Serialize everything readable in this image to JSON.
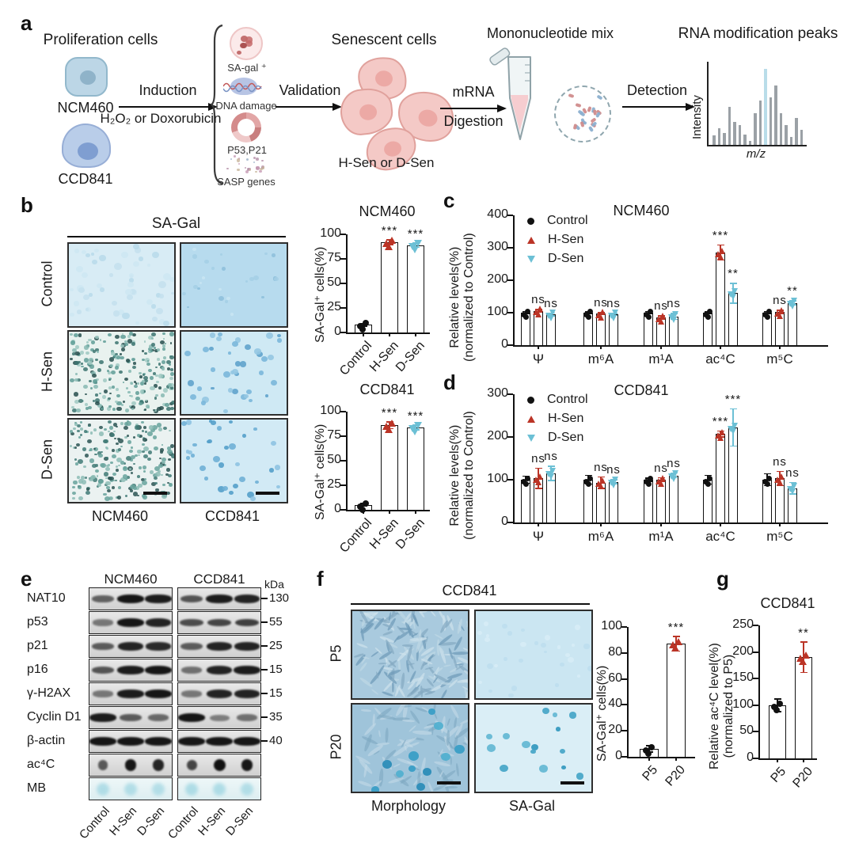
{
  "colors": {
    "control": "#111111",
    "h_sen_red": "#bb3426",
    "d_sen_cyan": "#6cc0d5",
    "spectrum_highlight": "#b9dde9",
    "stain_teal": "#4f9e97",
    "stain_blue": "#5fa3cc"
  },
  "panels": {
    "a": {
      "label": "a",
      "prolif_title": "Proliferation cells",
      "cell1": "NCM460",
      "cell2": "CCD841",
      "induction1": "Induction",
      "induction2": "H₂O₂ or Doxorubicin",
      "markers": [
        "SA-gal ⁺",
        "DNA damage",
        "P53,P21",
        "SASP genes"
      ],
      "validation": "Validation",
      "senescent_title": "Senescent cells",
      "senescent_sub": "H-Sen or D-Sen",
      "mrna1": "mRNA",
      "mrna2": "Digestion",
      "mono_title": "Mononucleotide mix",
      "detection": "Detection",
      "peaks_title": "RNA modification peaks",
      "intensity": "Intensity",
      "mz": "m/z"
    },
    "b": {
      "label": "b",
      "header": "SA-Gal",
      "rows": [
        "Control",
        "H-Sen",
        "D-Sen"
      ],
      "cols": [
        "NCM460",
        "CCD841"
      ]
    },
    "c": {
      "label": "c"
    },
    "d": {
      "label": "d"
    },
    "e": {
      "label": "e",
      "col_headers": [
        "NCM460",
        "CCD841"
      ],
      "kda_unit": "kDa",
      "lanes": [
        "Control",
        "H-Sen",
        "D-Sen",
        "Control",
        "H-Sen",
        "D-Sen"
      ],
      "rows": [
        {
          "name": "NAT10",
          "kda": "130",
          "type": "band",
          "ncm": [
            0.45,
            1,
            0.95
          ],
          "ccd": [
            0.55,
            0.95,
            0.9
          ]
        },
        {
          "name": "p53",
          "kda": "55",
          "type": "band",
          "ncm": [
            0.3,
            1,
            0.9
          ],
          "ccd": [
            0.6,
            0.65,
            0.7
          ]
        },
        {
          "name": "p21",
          "kda": "25",
          "type": "band",
          "ncm": [
            0.5,
            0.9,
            0.85
          ],
          "ccd": [
            0.5,
            0.9,
            0.9
          ]
        },
        {
          "name": "p16",
          "kda": "15",
          "type": "band",
          "ncm": [
            0.55,
            0.95,
            1
          ],
          "ccd": [
            0.35,
            0.9,
            0.95
          ]
        },
        {
          "name": "γ-H2AX",
          "kda": "15",
          "type": "band",
          "ncm": [
            0.3,
            0.95,
            1
          ],
          "ccd": [
            0.3,
            0.9,
            0.9
          ]
        },
        {
          "name": "Cyclin D1",
          "kda": "35",
          "type": "band",
          "ncm": [
            0.95,
            0.5,
            0.4
          ],
          "ccd": [
            1,
            0.25,
            0.35
          ]
        },
        {
          "name": "β-actin",
          "kda": "40",
          "type": "band",
          "ncm": [
            1,
            1,
            1
          ],
          "ccd": [
            1,
            1,
            1
          ]
        },
        {
          "name": "ac⁴C",
          "kda": "",
          "type": "dot",
          "ncm": [
            0.45,
            0.95,
            0.85
          ],
          "ccd": [
            0.6,
            1,
            0.95
          ]
        },
        {
          "name": "MB",
          "kda": "",
          "type": "mb",
          "ncm": [
            0.55,
            0.5,
            0.45
          ],
          "ccd": [
            0.6,
            0.6,
            0.5
          ]
        }
      ]
    },
    "f": {
      "label": "f",
      "header": "CCD841",
      "rows": [
        "P5",
        "P20"
      ],
      "cols": [
        "Morphology",
        "SA-Gal"
      ]
    },
    "g": {
      "label": "g"
    }
  },
  "chart_data": [
    {
      "id": "b_ncm460",
      "type": "bar",
      "title": "NCM460",
      "ylabel": "SA-Gal⁺ cells(%)",
      "ylim": [
        0,
        100
      ],
      "yticks": [
        0,
        25,
        50,
        75,
        100
      ],
      "categories": [
        "Control",
        "H-Sen",
        "D-Sen"
      ],
      "values": [
        8,
        92,
        89
      ],
      "errors": [
        2,
        3,
        3
      ],
      "sig": [
        "",
        "***",
        "***"
      ],
      "markers": [
        "circle",
        "tri-up",
        "tri-down"
      ],
      "colors": [
        "#111111",
        "#bb3426",
        "#6cc0d5"
      ]
    },
    {
      "id": "b_ccd841",
      "type": "bar",
      "title": "CCD841",
      "ylabel": "SA-Gal⁺ cells(%)",
      "ylim": [
        0,
        100
      ],
      "yticks": [
        0,
        25,
        50,
        75,
        100
      ],
      "categories": [
        "Control",
        "H-Sen",
        "D-Sen"
      ],
      "values": [
        5,
        86,
        84
      ],
      "errors": [
        2,
        4,
        3
      ],
      "sig": [
        "",
        "***",
        "***"
      ],
      "markers": [
        "circle",
        "tri-up",
        "tri-down"
      ],
      "colors": [
        "#111111",
        "#bb3426",
        "#6cc0d5"
      ]
    },
    {
      "id": "c_ncm460",
      "type": "grouped-bar",
      "title": "NCM460",
      "ylabel_lines": [
        "Relative levels(%)",
        "(normalized to Control)"
      ],
      "ylim": [
        0,
        400
      ],
      "yticks": [
        0,
        100,
        200,
        300,
        400
      ],
      "categories": [
        "Ψ",
        "m⁶A",
        "m¹A",
        "ac⁴C",
        "m⁵C"
      ],
      "legend": [
        "Control",
        "H-Sen",
        "D-Sen"
      ],
      "series": [
        {
          "name": "Control",
          "marker": "circle",
          "color": "#111111",
          "values": [
            100,
            100,
            100,
            100,
            100
          ],
          "errors": [
            6,
            5,
            6,
            5,
            6
          ]
        },
        {
          "name": "H-Sen",
          "marker": "tri-up",
          "color": "#bb3426",
          "values": [
            105,
            97,
            85,
            285,
            102
          ],
          "errors": [
            6,
            5,
            7,
            25,
            7
          ]
        },
        {
          "name": "D-Sen",
          "marker": "tri-down",
          "color": "#6cc0d5",
          "values": [
            95,
            95,
            88,
            160,
            130
          ],
          "errors": [
            6,
            5,
            11,
            32,
            8
          ]
        }
      ],
      "sig": [
        [
          "",
          "ns",
          "ns"
        ],
        [
          "",
          "ns",
          "ns"
        ],
        [
          "",
          "ns",
          "ns"
        ],
        [
          "",
          "***",
          "**"
        ],
        [
          "",
          "ns",
          "**"
        ]
      ]
    },
    {
      "id": "d_ccd841",
      "type": "grouped-bar",
      "title": "CCD841",
      "ylabel_lines": [
        "Relative levels(%)",
        "(normalized to Control)"
      ],
      "ylim": [
        0,
        300
      ],
      "yticks": [
        0,
        100,
        200,
        300
      ],
      "categories": [
        "Ψ",
        "m⁶A",
        "m¹A",
        "ac⁴C",
        "m⁵C"
      ],
      "legend": [
        "Control",
        "H-Sen",
        "D-Sen"
      ],
      "series": [
        {
          "name": "Control",
          "marker": "circle",
          "color": "#111111",
          "values": [
            100,
            100,
            100,
            100,
            100
          ],
          "errors": [
            10,
            12,
            5,
            12,
            15
          ]
        },
        {
          "name": "H-Sen",
          "marker": "tri-up",
          "color": "#bb3426",
          "values": [
            103,
            93,
            100,
            207,
            103
          ],
          "errors": [
            25,
            15,
            6,
            8,
            18
          ]
        },
        {
          "name": "D-Sen",
          "marker": "tri-down",
          "color": "#6cc0d5",
          "values": [
            115,
            95,
            110,
            222,
            80
          ],
          "errors": [
            18,
            6,
            7,
            45,
            15
          ]
        }
      ],
      "sig": [
        [
          "",
          "ns",
          "ns"
        ],
        [
          "",
          "ns",
          "ns"
        ],
        [
          "",
          "ns",
          "ns"
        ],
        [
          "",
          "***",
          "***"
        ],
        [
          "",
          "ns",
          "ns"
        ]
      ]
    },
    {
      "id": "f_sagal",
      "type": "bar",
      "title": "",
      "ylabel": "SA-Gal⁺ cells(%)",
      "ylim": [
        0,
        100
      ],
      "yticks": [
        0,
        20,
        40,
        60,
        80,
        100
      ],
      "categories": [
        "P5",
        "P20"
      ],
      "values": [
        6,
        87
      ],
      "errors": [
        3,
        6
      ],
      "sig": [
        "",
        "***"
      ],
      "markers": [
        "circle",
        "tri-up"
      ],
      "colors": [
        "#111111",
        "#bb3426"
      ]
    },
    {
      "id": "g_ac4c",
      "type": "bar",
      "title": "CCD841",
      "ylabel_lines": [
        "Relative ac⁴C level(%)",
        "(normalized to P5)"
      ],
      "ylim": [
        0,
        250
      ],
      "yticks": [
        0,
        50,
        100,
        150,
        200,
        250
      ],
      "categories": [
        "P5",
        "P20"
      ],
      "values": [
        100,
        190
      ],
      "errors": [
        13,
        30
      ],
      "sig": [
        "",
        "**"
      ],
      "markers": [
        "circle",
        "tri-up"
      ],
      "colors": [
        "#111111",
        "#bb3426"
      ]
    },
    {
      "id": "a_spectrum",
      "type": "bar",
      "title": "RNA modification peaks",
      "xlabel": "m/z",
      "ylabel": "Intensity",
      "values": [
        12,
        22,
        16,
        50,
        30,
        26,
        14,
        5,
        42,
        58,
        100,
        62,
        78,
        42,
        26,
        10,
        35,
        20
      ],
      "highlight_index": 10,
      "highlight_color": "#b9dde9",
      "bar_color": "#9ba1a6"
    }
  ]
}
